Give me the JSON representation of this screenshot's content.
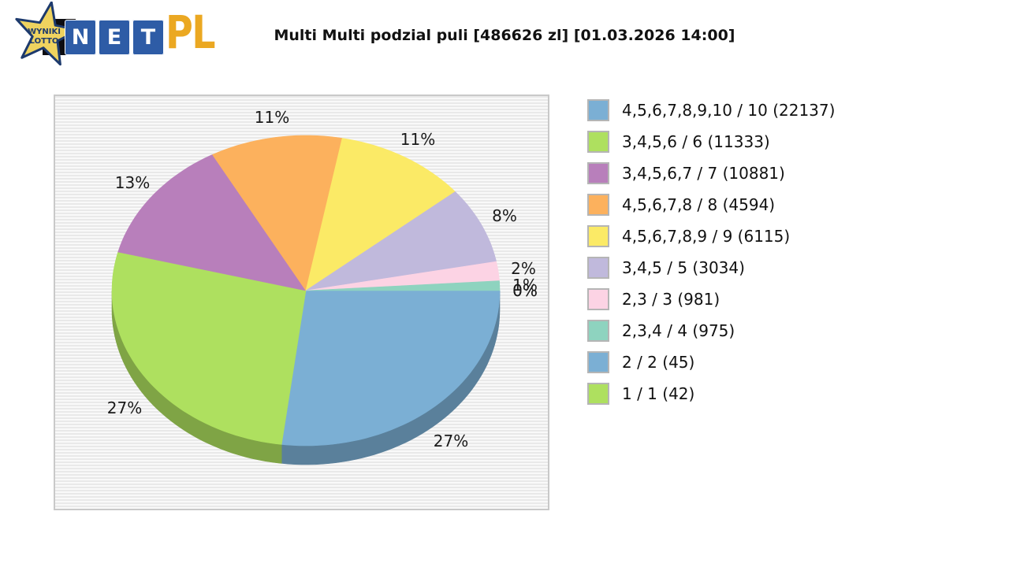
{
  "header": {
    "title": "Multi Multi podzial puli [486626 zl] [01.03.2026 14:00]",
    "logo": {
      "star_line1": "WYNIKI",
      "star_line2": "LOTTO",
      "net_letters": [
        "N",
        "E",
        "T"
      ],
      "suffix": "PL",
      "star_color": "#efd35f",
      "star_outline": "#1d3a6d",
      "tile_color": "#2e5ca6",
      "suffix_color": "#eba822"
    }
  },
  "chart_data": {
    "type": "pie",
    "title": "Multi Multi podzial puli [486626 zl] [01.03.2026 14:00]",
    "unit": "%",
    "legend_position": "right",
    "style": "3d",
    "slices": [
      {
        "label": "4,5,6,7,8,9,10 / 10 (22137)",
        "percent": 27,
        "color": "#7bafd4"
      },
      {
        "label": "3,4,5,6 / 6 (11333)",
        "percent": 27,
        "color": "#aee05f"
      },
      {
        "label": "3,4,5,6,7 / 7 (10881)",
        "percent": 13,
        "color": "#b87fbb"
      },
      {
        "label": "4,5,6,7,8 / 8 (4594)",
        "percent": 11,
        "color": "#fcb15d"
      },
      {
        "label": "4,5,6,7,8,9 / 9 (6115)",
        "percent": 11,
        "color": "#fbea66"
      },
      {
        "label": "3,4,5 / 5 (3034)",
        "percent": 8,
        "color": "#c0b9dc"
      },
      {
        "label": "2,3 / 3 (981)",
        "percent": 2,
        "color": "#fcd3e4"
      },
      {
        "label": "2,3,4 / 4 (975)",
        "percent": 1,
        "color": "#8ed3bf"
      },
      {
        "label": "2 / 2 (45)",
        "percent": 0,
        "color": "#7bafd4"
      },
      {
        "label": "1 / 1 (42)",
        "percent": 0,
        "color": "#aee05f"
      }
    ]
  }
}
